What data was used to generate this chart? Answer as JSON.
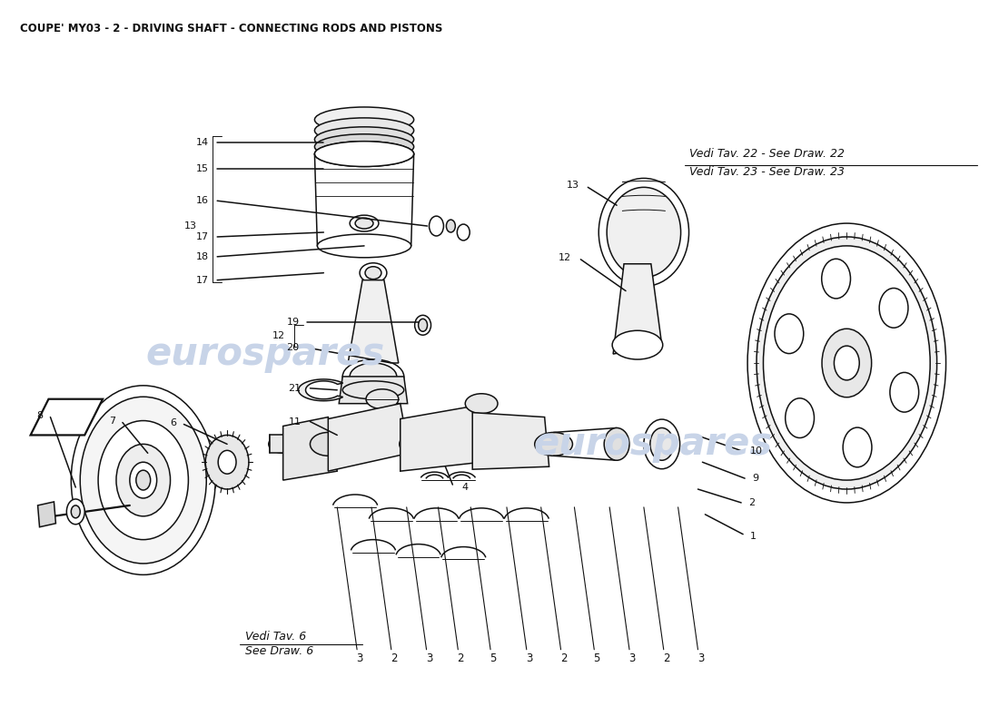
{
  "title": "COUPE' MY03 - 2 - DRIVING SHAFT - CONNECTING RODS AND PISTONS",
  "title_fontsize": 8.5,
  "bg_color": "#ffffff",
  "line_color": "#111111",
  "watermark_color": "#c8d4e8",
  "vedi_top_right": [
    "Vedi Tav. 22 - See Draw. 22",
    "Vedi Tav. 23 - See Draw. 23"
  ],
  "vedi_bottom_left": [
    "Vedi Tav. 6",
    "See Draw. 6"
  ],
  "bottom_labels": [
    "3",
    "2",
    "3",
    "2",
    "5",
    "3",
    "2",
    "5",
    "3",
    "2",
    "3"
  ],
  "font_family": "DejaVu Sans",
  "figsize": [
    11.0,
    8.0
  ],
  "dpi": 100
}
